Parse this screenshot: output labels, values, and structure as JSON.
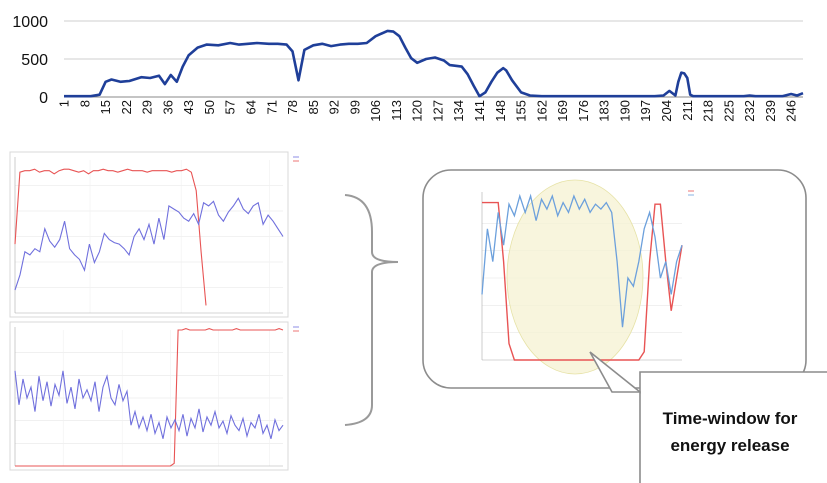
{
  "chart_data": [
    {
      "type": "line",
      "color": "#1f3f99",
      "ylim": [
        0,
        1000
      ],
      "y_ticks": [
        "0",
        "500",
        "1000"
      ],
      "x_tick_labels": [
        "1",
        "8",
        "15",
        "22",
        "29",
        "36",
        "43",
        "50",
        "57",
        "64",
        "71",
        "78",
        "85",
        "92",
        "99",
        "106",
        "113",
        "120",
        "127",
        "134",
        "141",
        "148",
        "155",
        "162",
        "169",
        "176",
        "183",
        "190",
        "197",
        "204",
        "211",
        "218",
        "225",
        "232",
        "239",
        "246"
      ],
      "xlim": [
        1,
        250
      ],
      "grid": true,
      "series": [
        {
          "x": [
            1,
            10,
            13,
            15,
            17,
            20,
            23,
            27,
            30,
            33,
            35,
            37,
            39,
            41,
            43,
            46,
            49,
            53,
            57,
            60,
            63,
            66,
            70,
            73,
            76,
            78,
            80,
            82,
            85,
            88,
            91,
            94,
            97,
            100,
            103,
            106,
            110,
            112,
            114,
            116,
            118,
            120,
            123,
            126,
            129,
            131,
            133,
            135,
            137,
            139,
            141,
            143,
            145,
            147,
            149,
            150,
            152,
            155,
            158,
            162,
            170,
            180,
            190,
            200,
            203,
            205,
            207,
            208,
            209,
            210,
            211,
            212,
            213,
            215,
            220,
            226,
            230,
            232,
            234,
            238,
            243,
            246,
            248,
            250
          ],
          "values": [
            10,
            10,
            30,
            200,
            230,
            200,
            210,
            260,
            250,
            280,
            170,
            290,
            200,
            400,
            550,
            650,
            690,
            680,
            710,
            690,
            700,
            710,
            700,
            700,
            690,
            600,
            220,
            620,
            680,
            700,
            670,
            690,
            700,
            700,
            710,
            800,
            870,
            860,
            800,
            650,
            510,
            450,
            500,
            520,
            480,
            420,
            410,
            400,
            300,
            150,
            10,
            60,
            200,
            320,
            380,
            350,
            220,
            60,
            20,
            10,
            10,
            10,
            10,
            10,
            20,
            80,
            20,
            200,
            320,
            310,
            250,
            30,
            10,
            10,
            10,
            10,
            10,
            20,
            10,
            10,
            10,
            40,
            20,
            50
          ]
        }
      ]
    },
    {
      "type": "line",
      "ylim": [
        0,
        100
      ],
      "grid": true,
      "series": [
        {
          "color": "#e85454",
          "values": [
            45,
            92,
            93,
            93,
            94,
            92,
            93,
            93,
            91,
            93,
            94,
            94,
            93,
            92,
            93,
            91,
            93,
            93,
            94,
            93,
            93,
            92,
            93,
            94,
            93,
            93,
            93,
            92,
            93,
            93,
            93,
            93,
            92,
            93,
            93,
            94,
            92,
            80,
            40,
            5
          ]
        },
        {
          "color": "#7070dd",
          "values": [
            15,
            25,
            40,
            38,
            42,
            40,
            55,
            47,
            43,
            48,
            60,
            42,
            38,
            35,
            28,
            45,
            33,
            40,
            52,
            48,
            46,
            45,
            42,
            38,
            50,
            55,
            48,
            58,
            45,
            62,
            48,
            70,
            68,
            66,
            62,
            60,
            65,
            58,
            72,
            70,
            73,
            64,
            60,
            66,
            70,
            75,
            68,
            65,
            70,
            72,
            58,
            64,
            60,
            55,
            50
          ]
        }
      ]
    },
    {
      "type": "line",
      "ylim": [
        0,
        100
      ],
      "grid": true,
      "series": [
        {
          "color": "#e85454",
          "values": [
            0,
            0,
            0,
            0,
            0,
            0,
            0,
            0,
            0,
            0,
            0,
            0,
            0,
            0,
            0,
            0,
            0,
            0,
            0,
            0,
            0,
            0,
            0,
            0,
            0,
            0,
            0,
            0,
            0,
            0,
            0,
            0,
            0,
            0,
            0,
            0,
            0,
            0,
            0,
            0,
            0,
            2,
            100,
            100,
            101,
            100,
            100,
            100,
            100,
            100,
            101,
            100,
            100,
            100,
            100,
            100,
            100,
            101,
            100,
            100,
            100,
            100,
            100,
            100,
            100,
            100,
            100,
            100,
            101,
            100
          ]
        },
        {
          "color": "#7070dd",
          "values": [
            70,
            45,
            64,
            50,
            58,
            40,
            66,
            48,
            62,
            44,
            60,
            52,
            70,
            46,
            58,
            42,
            64,
            50,
            56,
            48,
            62,
            40,
            58,
            66,
            50,
            45,
            60,
            48,
            55,
            30,
            40,
            28,
            36,
            26,
            38,
            24,
            32,
            20,
            36,
            28,
            34,
            26,
            38,
            22,
            35,
            28,
            42,
            25,
            36,
            30,
            40,
            28,
            33,
            24,
            37,
            30,
            26,
            35,
            22,
            32,
            28,
            38,
            24,
            30,
            20,
            34,
            26,
            30
          ]
        }
      ]
    },
    {
      "type": "line",
      "ylim": [
        0,
        100
      ],
      "grid": true,
      "series": [
        {
          "color": "#e85454",
          "values": [
            96,
            96,
            96,
            96,
            60,
            10,
            0,
            0,
            0,
            0,
            0,
            0,
            0,
            0,
            0,
            0,
            0,
            0,
            0,
            0,
            0,
            0,
            0,
            0,
            0,
            0,
            0,
            0,
            0,
            0,
            5,
            60,
            95,
            95,
            60,
            30,
            50,
            70
          ]
        },
        {
          "color": "#6ca0dc",
          "values": [
            40,
            80,
            60,
            90,
            70,
            95,
            88,
            100,
            90,
            100,
            85,
            98,
            92,
            100,
            88,
            96,
            90,
            100,
            92,
            98,
            90,
            95,
            92,
            96,
            90,
            60,
            20,
            50,
            45,
            60,
            80,
            90,
            75,
            50,
            60,
            40,
            60,
            70
          ]
        }
      ]
    }
  ],
  "annotation": {
    "callout_line1": "Time-window for",
    "callout_line2": "energy release"
  }
}
